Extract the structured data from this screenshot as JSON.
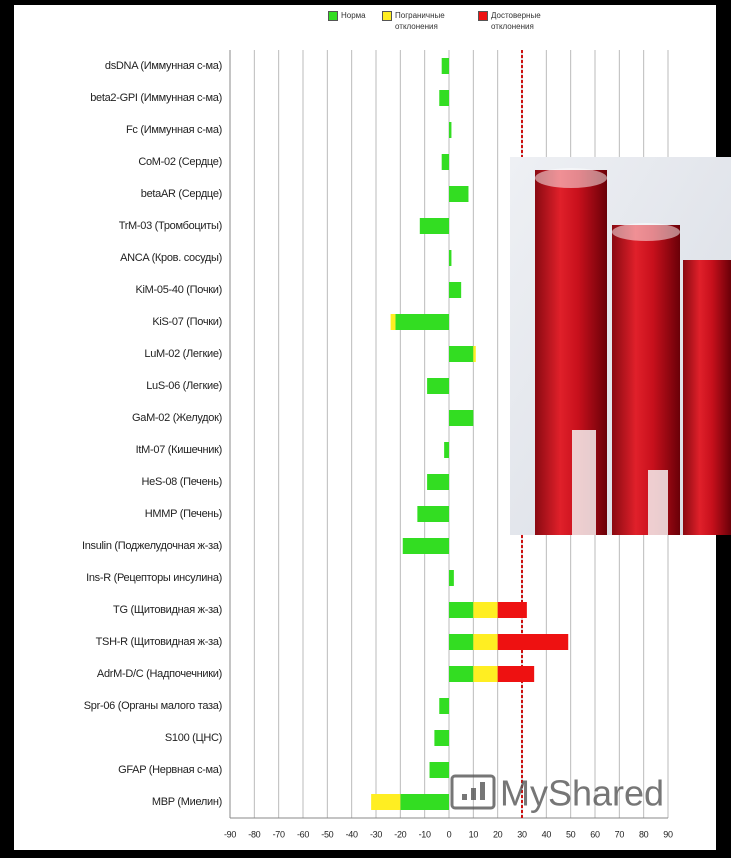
{
  "chart_data": {
    "type": "stacked-barh",
    "categories": [
      "dsDNA (Иммунная с-ма)",
      "beta2-GPI (Иммунная с-ма)",
      "Fc (Иммунная с-ма)",
      "CoM-02 (Сердце)",
      "betaAR (Сердце)",
      "TrM-03 (Тромбоциты)",
      "ANCA (Кров. сосуды)",
      "KiM-05-40 (Почки)",
      "KiS-07 (Почки)",
      "LuM-02 (Легкие)",
      "LuS-06 (Легкие)",
      "GaM-02 (Желудок)",
      "ItM-07 (Кишечник)",
      "HeS-08 (Печень)",
      "HMMP (Печень)",
      "Insulin (Поджелудочная ж-за)",
      "Ins-R (Рецепторы инсулина)",
      "TG (Щитовидная ж-за)",
      "TSH-R (Щитовидная ж-за)",
      "AdrM-D/C (Надпочечники)",
      "Spr-06 (Органы малого таза)",
      "S100 (ЦНС)",
      "GFAP (Нервная с-ма)",
      "MBP (Миелин)"
    ],
    "series": [
      {
        "name": "Норма",
        "color": "#33dd22",
        "values": [
          -3,
          -4,
          1,
          -3,
          8,
          -12,
          1,
          5,
          -22,
          10,
          -9,
          10,
          -2,
          -9,
          -13,
          -19,
          2,
          10,
          10,
          10,
          -4,
          -6,
          -8,
          -20
        ]
      },
      {
        "name": "Пограничные отклонения",
        "color": "#ffee22",
        "values": [
          null,
          null,
          null,
          null,
          null,
          null,
          null,
          null,
          -2,
          1,
          null,
          null,
          null,
          null,
          null,
          null,
          null,
          10,
          10,
          10,
          null,
          null,
          null,
          -12
        ]
      },
      {
        "name": "Достоверные отклонения",
        "color": "#ee1111",
        "values": [
          null,
          null,
          null,
          null,
          null,
          null,
          null,
          null,
          null,
          null,
          null,
          null,
          null,
          null,
          null,
          null,
          null,
          12,
          29,
          15,
          null,
          null,
          null,
          null
        ]
      }
    ],
    "threshold": 30,
    "xlim": [
      -90,
      90
    ],
    "xticks": [
      -90,
      -80,
      -70,
      -60,
      -50,
      -40,
      -30,
      -20,
      -10,
      0,
      10,
      20,
      30,
      40,
      50,
      60,
      70,
      80,
      90
    ],
    "grid": true
  },
  "watermark": "MyShared"
}
